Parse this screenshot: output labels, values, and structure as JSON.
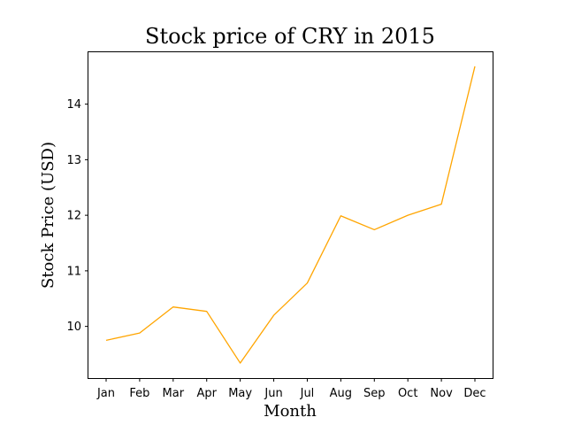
{
  "chart_data": {
    "type": "line",
    "title": "Stock price of CRY in 2015",
    "xlabel": "Month",
    "ylabel": "Stock Price (USD)",
    "categories": [
      "Jan",
      "Feb",
      "Mar",
      "Apr",
      "May",
      "Jun",
      "Jul",
      "Aug",
      "Sep",
      "Oct",
      "Nov",
      "Dec"
    ],
    "series": [
      {
        "values": [
          9.75,
          9.88,
          10.35,
          10.27,
          9.34,
          10.2,
          10.78,
          11.99,
          11.74,
          12.0,
          12.2,
          14.68
        ],
        "color": "#ffa500"
      }
    ],
    "yticks": [
      10,
      11,
      12,
      13,
      14
    ],
    "ylim": [
      9.07,
      14.95
    ],
    "grid": false,
    "legend": "none"
  }
}
